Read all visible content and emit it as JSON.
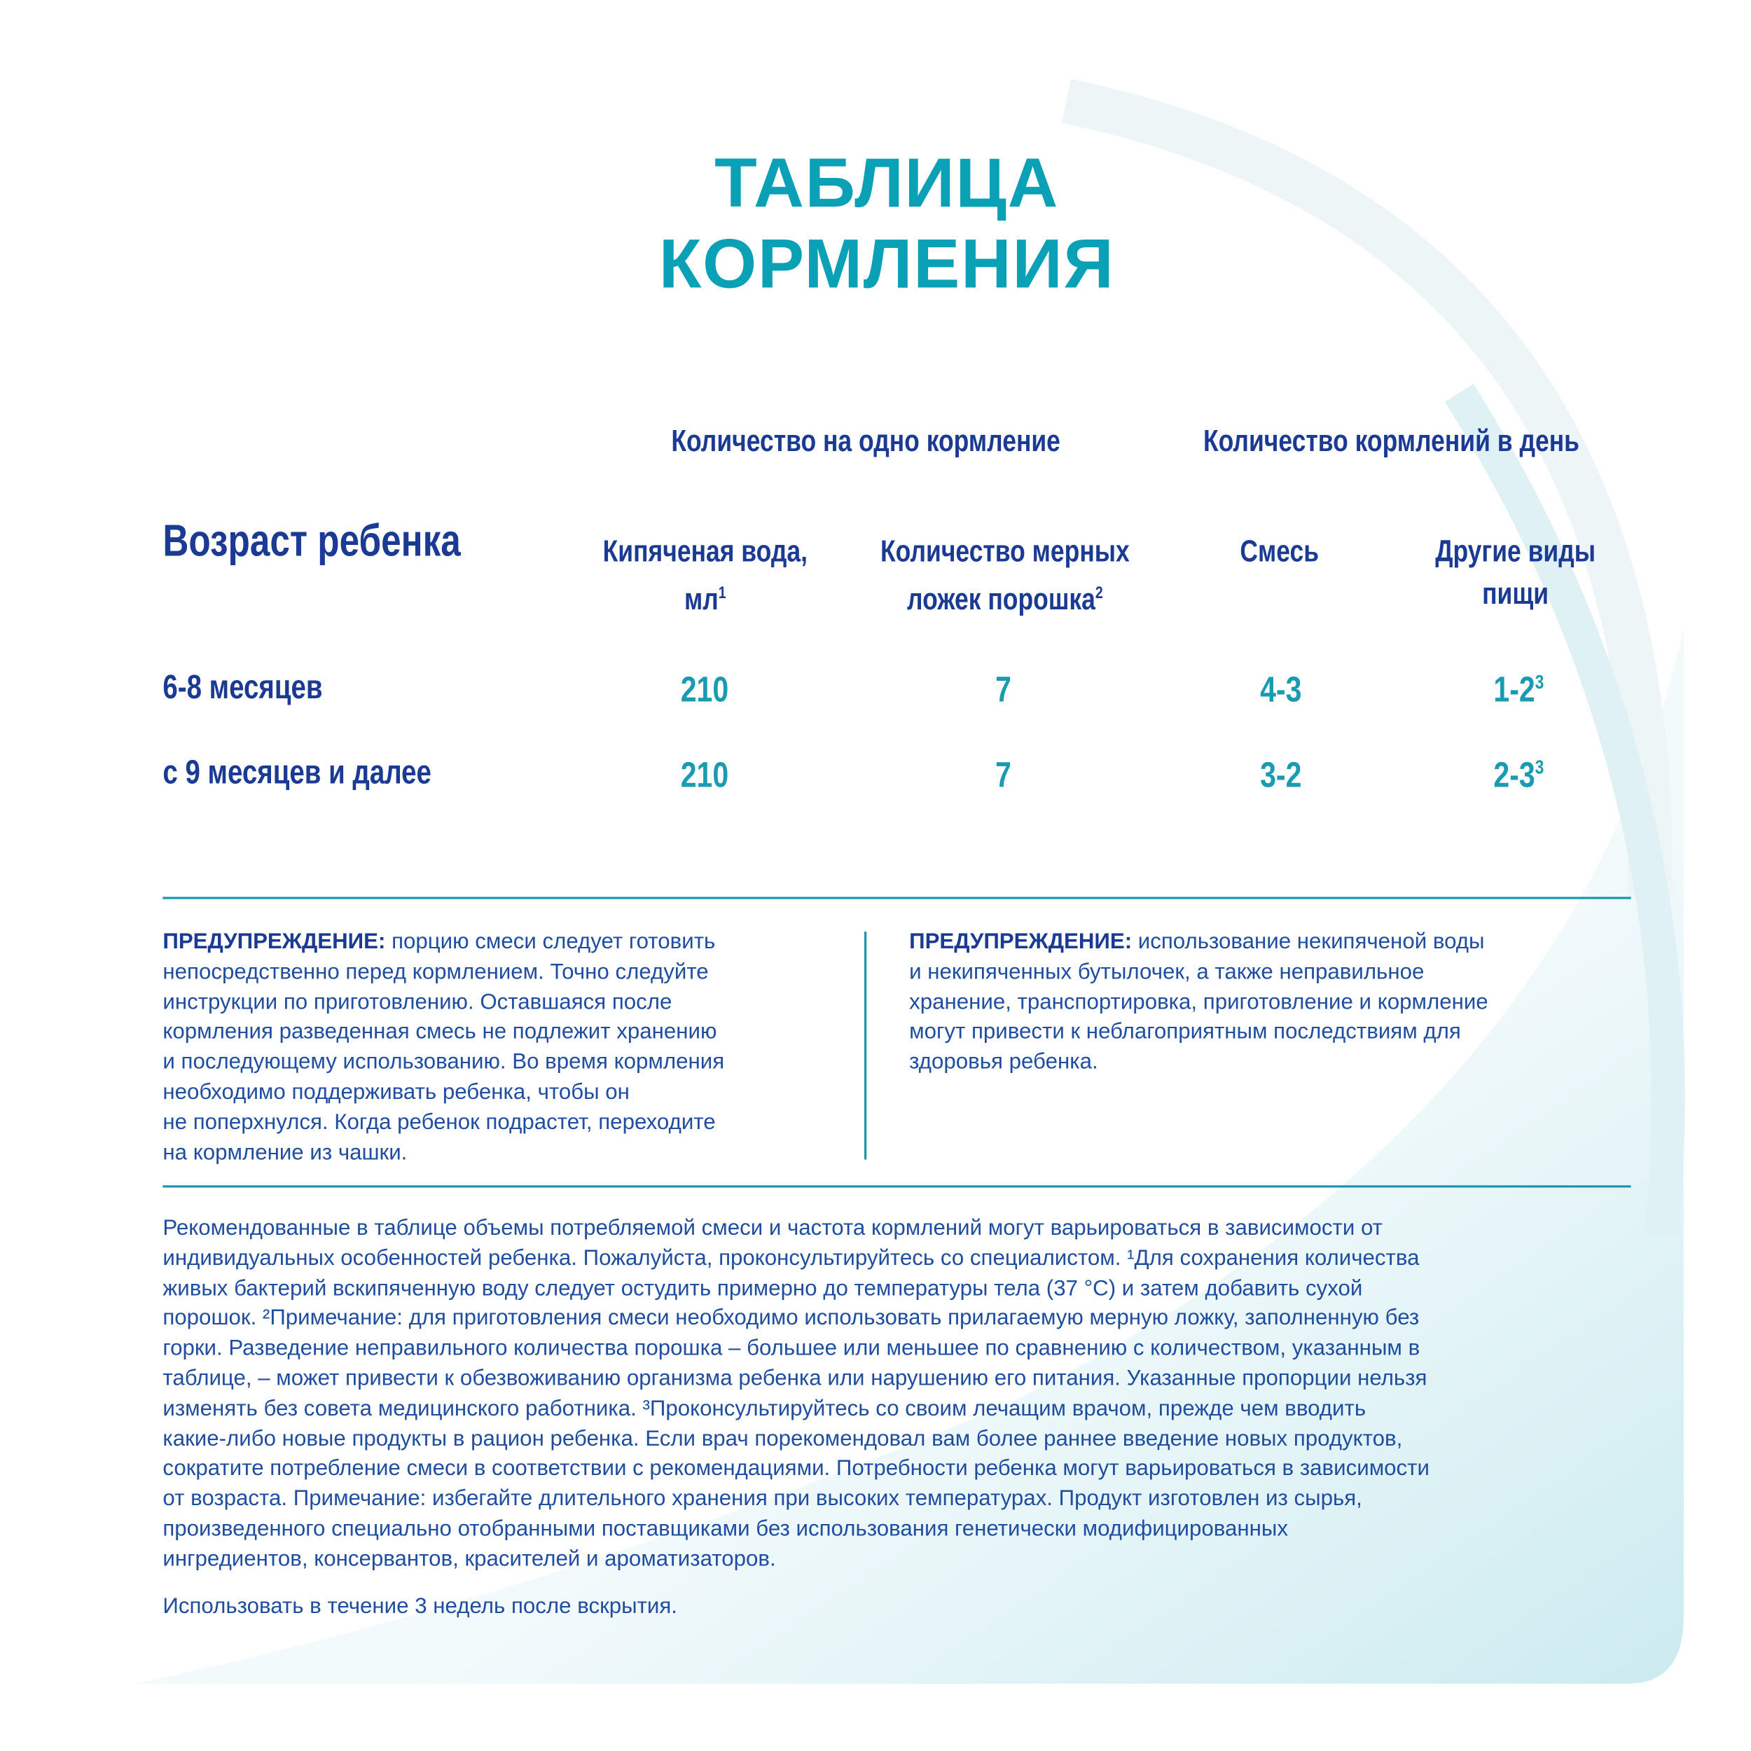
{
  "title": {
    "line1": "ТАБЛИЦА",
    "line2": "КОРМЛЕНИЯ"
  },
  "colors": {
    "title": "#0aa0b6",
    "heading": "#1b3a94",
    "value": "#1a9bb2",
    "text": "#1f4ea0",
    "rule": "#1896ab"
  },
  "table": {
    "group_headers": [
      "Количество на одно кормление",
      "Количество кормлений в день"
    ],
    "age_header": "Возраст ребенка",
    "columns": [
      {
        "label": "Кипяченая вода,",
        "label2": "мл",
        "sup": "1"
      },
      {
        "label": "Количество мерных",
        "label2": "ложек порошка",
        "sup": "2"
      },
      {
        "label": "Смесь",
        "label2": "",
        "sup": ""
      },
      {
        "label": "Другие виды",
        "label2": "пищи",
        "sup": ""
      }
    ],
    "rows": [
      {
        "age": "6-8 месяцев",
        "water": "210",
        "spoons": "7",
        "formula": "4-3",
        "other": "1-2",
        "other_sup": "3"
      },
      {
        "age": "с 9 месяцев и далее",
        "water": "210",
        "spoons": "7",
        "formula": "3-2",
        "other": "2-3",
        "other_sup": "3"
      }
    ]
  },
  "warnings": [
    {
      "label": "ПРЕДУПРЕЖДЕНИЕ:",
      "lines": [
        " порцию смеси следует готовить",
        "непосредственно перед кормлением. Точно следуйте",
        "инструкции по приготовлению. Оставшаяся после",
        "кормления разведенная смесь не подлежит хранению",
        "и последующему использованию. Во время кормления",
        "необходимо поддерживать ребенка, чтобы он",
        "не поперхнулся. Когда ребенок подрастет, переходите",
        "на кормление из чашки."
      ]
    },
    {
      "label": "ПРЕДУПРЕЖДЕНИЕ:",
      "lines": [
        " использование некипяченой воды",
        "и некипяченных бутылочек, а также неправильное",
        "хранение, транспортировка, приготовление и кормление",
        "могут привести к неблагоприятным последствиям для",
        "здоровья ребенка."
      ]
    }
  ],
  "notes": [
    "Рекомендованные в таблице объемы потребляемой смеси и частота кормлений могут варьироваться в зависимости от",
    "индивидуальных особенностей ребенка. Пожалуйста, проконсультируйтесь со специалистом. ¹Для сохранения количества",
    "живых бактерий вскипяченную воду следует остудить примерно до температуры тела (37 °C) и затем добавить сухой",
    "порошок. ²Примечание: для приготовления  смеси необходимо использовать прилагаемую мерную ложку, заполненную без",
    "горки. Разведение неправильного количества порошка – большее или меньшее по сравнению с количеством, указанным в",
    "таблице, – может привести к обезвоживанию организма ребенка или нарушению его питания. Указанные пропорции нельзя",
    "изменять без совета медицинского работника. ³Проконсультируйтесь со своим лечащим врачом, прежде чем вводить",
    "какие-либо новые продукты  в рацион ребенка. Если врач порекомендовал вам более раннее введение новых продуктов,",
    "сократите потребление смеси в соответствии с рекомендациями. Потребности ребенка могут варьироваться в зависимости",
    "от возраста. Примечание: избегайте длительного хранения при высоких температурах. Продукт изготовлен из сырья,",
    "произведенного специально отобранными поставщиками без использования  генетически модифицированных",
    "ингредиентов, консервантов,  красителей и ароматизаторов."
  ],
  "usage": "Использовать в течение 3 недель после вскрытия."
}
